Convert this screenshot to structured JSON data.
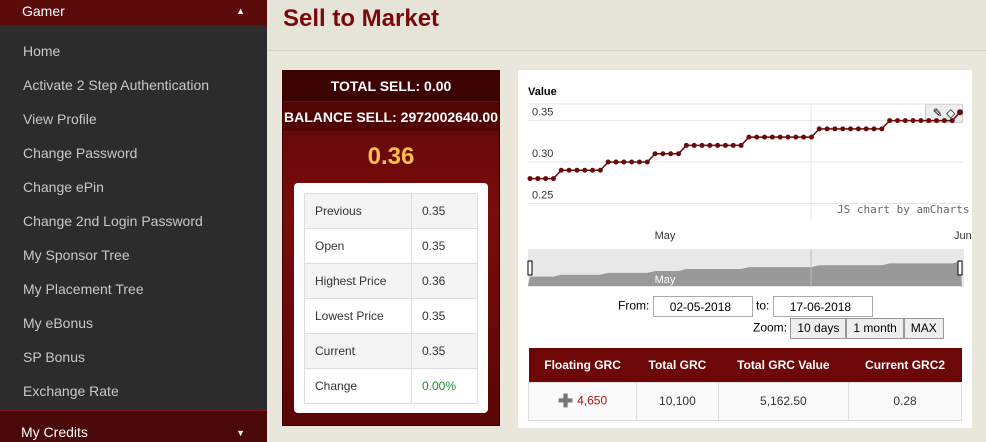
{
  "sidebar": {
    "header": "Gamer",
    "items": [
      {
        "label": "Home"
      },
      {
        "label": "Activate 2 Step Authentication"
      },
      {
        "label": "View Profile"
      },
      {
        "label": "Change Password"
      },
      {
        "label": "Change ePin"
      },
      {
        "label": "Change 2nd Login Password"
      },
      {
        "label": "My Sponsor Tree"
      },
      {
        "label": "My Placement Tree"
      },
      {
        "label": "My eBonus"
      },
      {
        "label": "SP Bonus"
      },
      {
        "label": "Exchange Rate"
      }
    ],
    "footer": "My Credits"
  },
  "page": {
    "title": "Sell to Market"
  },
  "sell": {
    "total_sell": "TOTAL SELL: 0.00",
    "balance_sell": "BALANCE SELL: 2972002640.00",
    "price": "0.36",
    "stats": [
      {
        "label": "Previous",
        "value": "0.35"
      },
      {
        "label": "Open",
        "value": "0.35"
      },
      {
        "label": "Highest Price",
        "value": "0.36"
      },
      {
        "label": "Lowest Price",
        "value": "0.35"
      },
      {
        "label": "Current",
        "value": "0.35"
      },
      {
        "label": "Change",
        "value": "0.00%"
      }
    ]
  },
  "chart": {
    "title": "Value",
    "credit": "JS chart by amCharts",
    "from_label": "From:",
    "from_value": "02-05-2018",
    "to_label": "to:",
    "to_value": "17-06-2018",
    "zoom_label": "Zoom:",
    "zoom_buttons": [
      "10 days",
      "1 month",
      "MAX"
    ],
    "colors": {
      "line": "#6b0a0a",
      "scroll": "#999999"
    }
  },
  "chart_data": {
    "type": "line",
    "x_ticks": [
      "May",
      "Jun"
    ],
    "y_ticks": [
      "0.25",
      "0.30",
      "0.35"
    ],
    "ylim": [
      0.23,
      0.37
    ],
    "values": [
      0.28,
      0.28,
      0.28,
      0.28,
      0.29,
      0.29,
      0.29,
      0.29,
      0.29,
      0.29,
      0.3,
      0.3,
      0.3,
      0.3,
      0.3,
      0.3,
      0.31,
      0.31,
      0.31,
      0.31,
      0.32,
      0.32,
      0.32,
      0.32,
      0.32,
      0.32,
      0.32,
      0.32,
      0.33,
      0.33,
      0.33,
      0.33,
      0.33,
      0.33,
      0.33,
      0.33,
      0.33,
      0.34,
      0.34,
      0.34,
      0.34,
      0.34,
      0.34,
      0.34,
      0.34,
      0.34,
      0.35,
      0.35,
      0.35,
      0.35,
      0.35,
      0.35,
      0.35,
      0.35,
      0.35,
      0.36
    ]
  },
  "grc": {
    "headers": [
      "Floating GRC",
      "Total GRC",
      "Total GRC Value",
      "Current GRC2"
    ],
    "row": [
      "4,650",
      "10,100",
      "5,162.50",
      "0.28"
    ]
  }
}
